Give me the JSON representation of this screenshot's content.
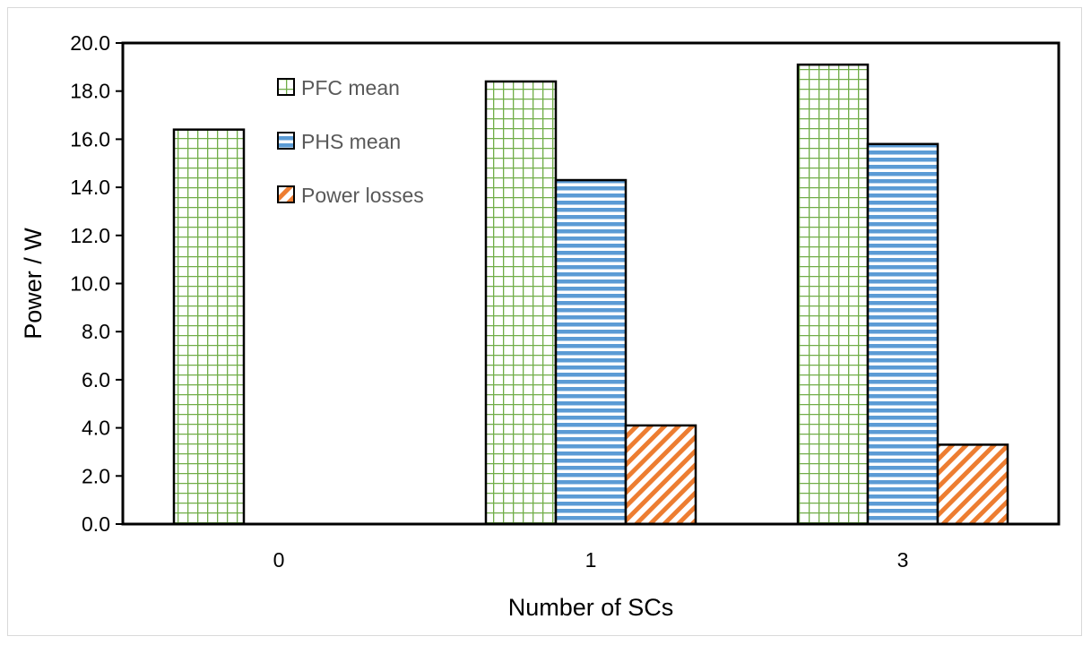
{
  "chart_data": {
    "type": "bar",
    "title": "",
    "xlabel": "Number of SCs",
    "ylabel": "Power / W",
    "categories": [
      "0",
      "1",
      "3"
    ],
    "ylim": [
      0,
      20
    ],
    "yticks": [
      "0.0",
      "2.0",
      "4.0",
      "6.0",
      "8.0",
      "10.0",
      "12.0",
      "14.0",
      "16.0",
      "18.0",
      "20.0"
    ],
    "grid": false,
    "legend_position": "top-left inside",
    "series": [
      {
        "name": "PFC mean",
        "values": [
          16.4,
          18.4,
          19.1
        ],
        "color": "#70ad47",
        "pattern": "grid"
      },
      {
        "name": "PHS mean",
        "values": [
          null,
          14.3,
          15.8
        ],
        "color": "#5b9bd5",
        "pattern": "horizontal"
      },
      {
        "name": "Power losses",
        "values": [
          null,
          4.1,
          3.3
        ],
        "color": "#ed7d31",
        "pattern": "diagonal"
      }
    ]
  }
}
